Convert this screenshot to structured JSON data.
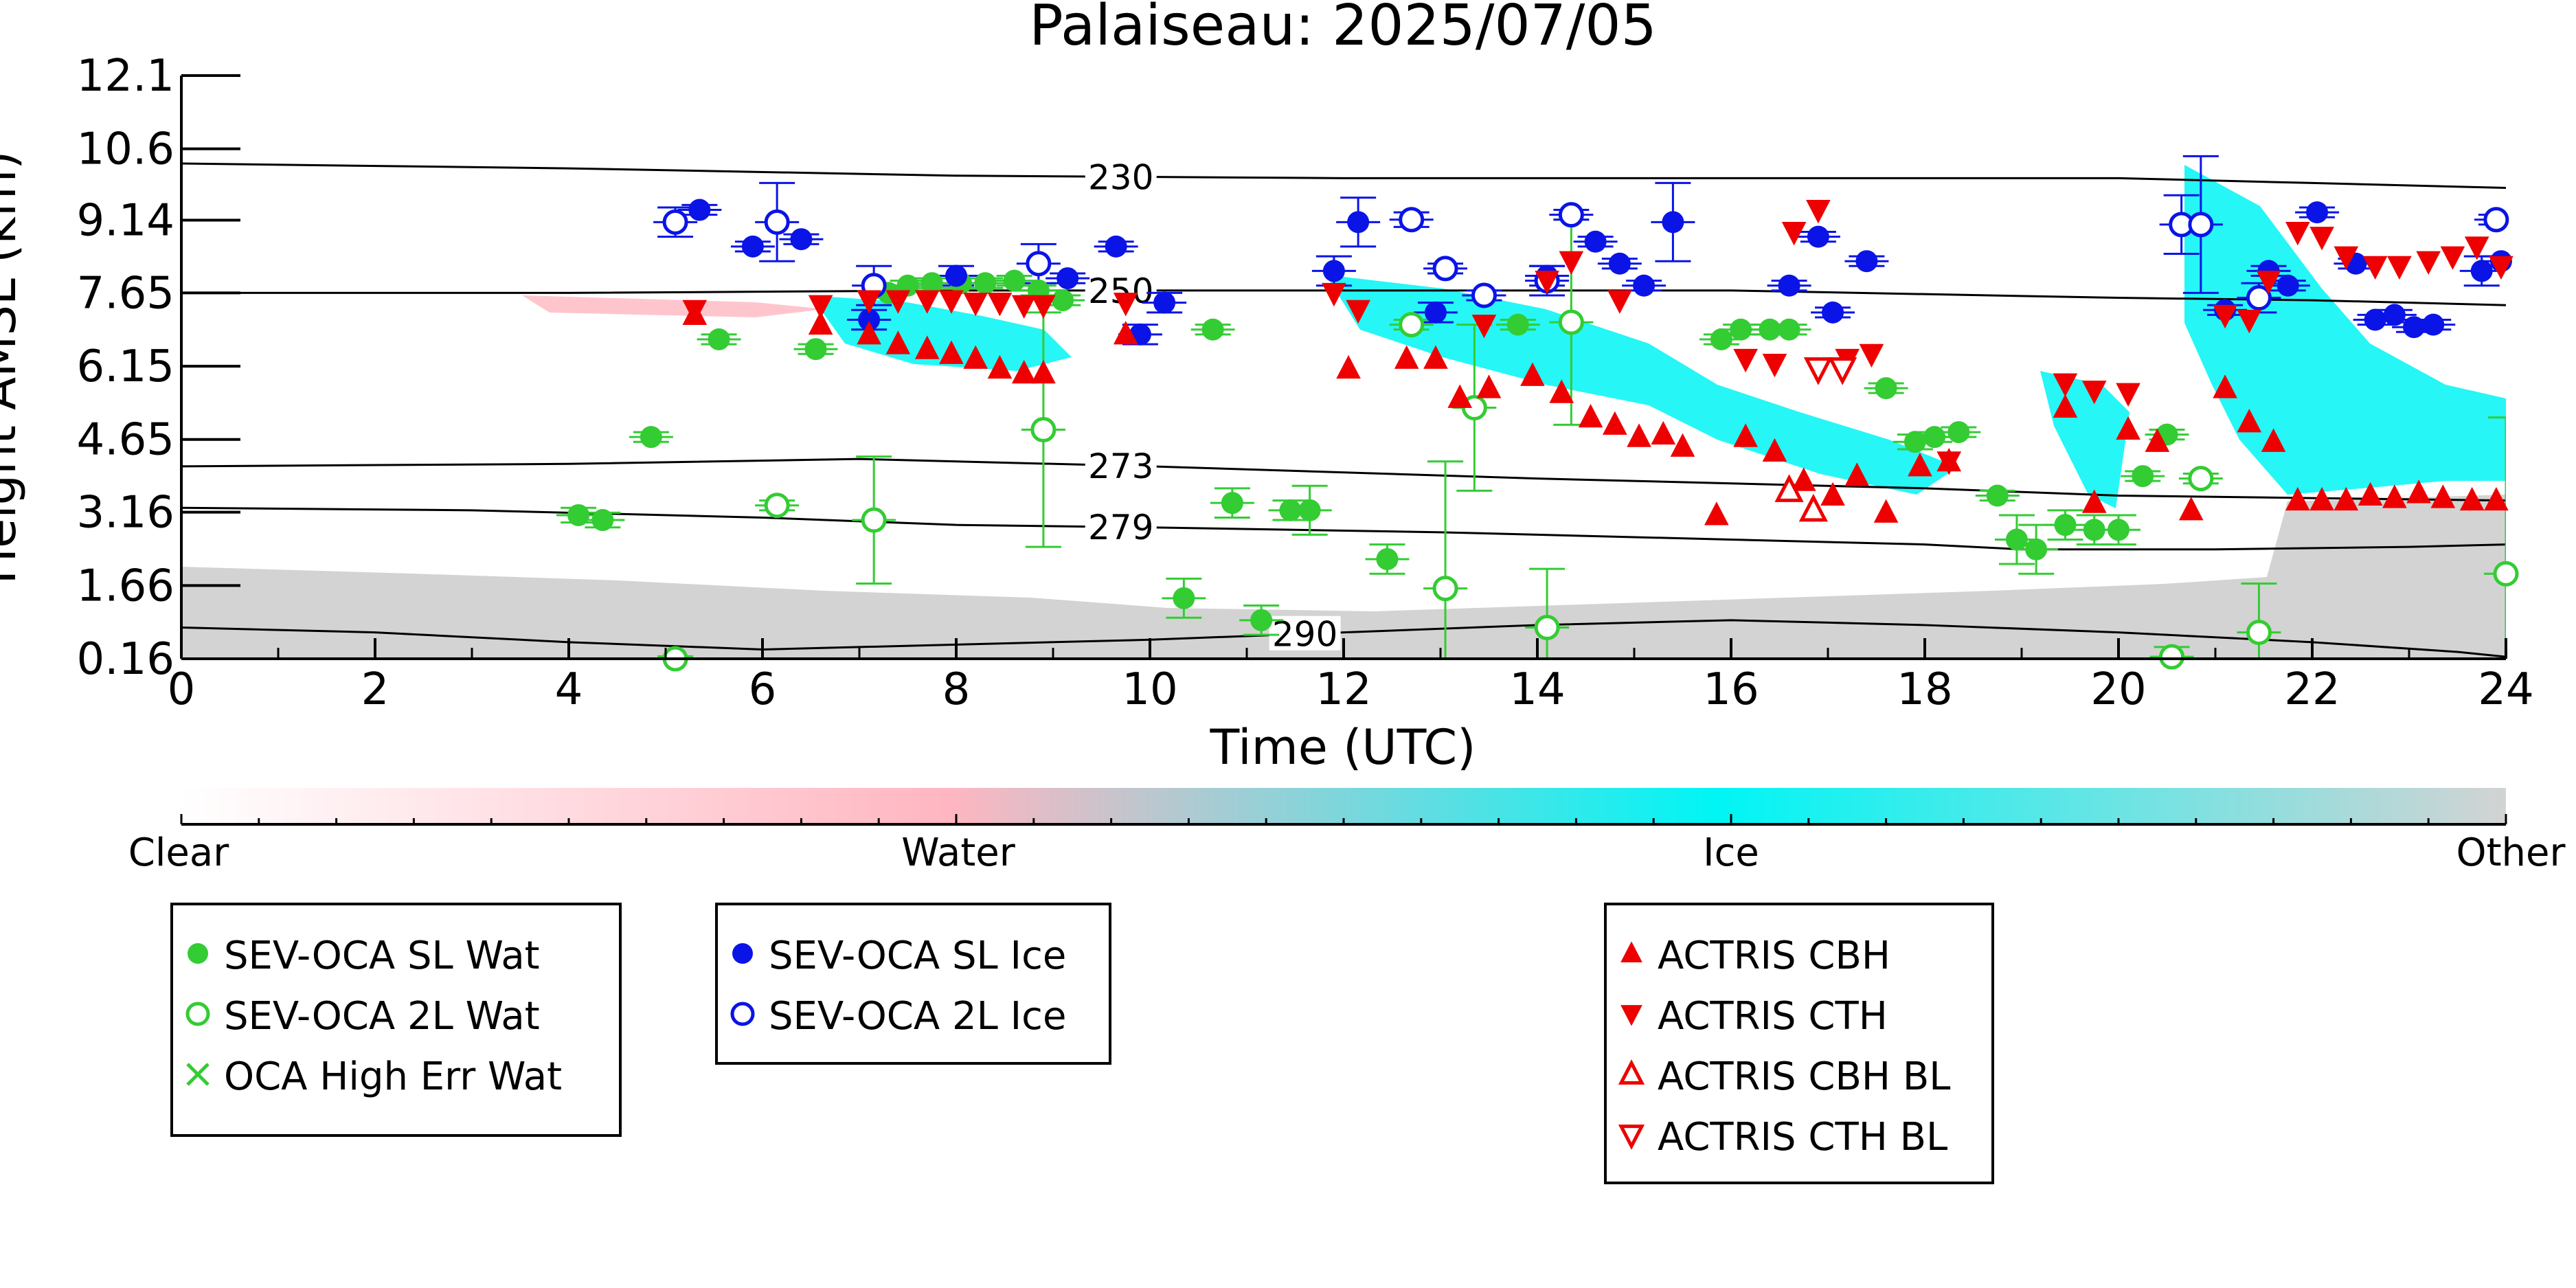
{
  "chart_data": {
    "type": "scatter",
    "title": "Palaiseau: 2025/07/05",
    "xlabel": "Time (UTC)",
    "ylabel": "Height AMSL (km)",
    "xlim": [
      0,
      24
    ],
    "ylim": [
      0.16,
      12.1
    ],
    "x_ticks": [
      0,
      2,
      4,
      6,
      8,
      10,
      12,
      14,
      16,
      18,
      20,
      22,
      24
    ],
    "y_ticks": [
      0.16,
      1.66,
      3.16,
      4.65,
      6.15,
      7.65,
      9.14,
      10.6,
      12.1
    ],
    "y_tick_labels": [
      "0.16",
      "1.66",
      "3.16",
      "4.65",
      "6.15",
      "7.65",
      "9.14",
      "10.6",
      "12.1"
    ],
    "grid": false,
    "colors": {
      "sl_wat": "#33cc33",
      "l2_wat": "#33cc33",
      "sl_ice": "#0a14e6",
      "l2_ice": "#0a14e6",
      "actris": "#ee0000",
      "cloud_ice": "#00f5f5",
      "cloud_water": "#ffb6c1",
      "other": "#d3d3d3"
    },
    "colorbar": {
      "labels": [
        "Clear",
        "Water",
        "Ice",
        "Other"
      ]
    },
    "legend_groups": [
      [
        {
          "label": "SEV-OCA SL Wat",
          "marker": "circle-filled",
          "color_key": "sl_wat"
        },
        {
          "label": "SEV-OCA 2L Wat",
          "marker": "circle-open",
          "color_key": "l2_wat"
        },
        {
          "label": "OCA High Err Wat",
          "marker": "x",
          "color_key": "sl_wat"
        }
      ],
      [
        {
          "label": "SEV-OCA SL Ice",
          "marker": "circle-filled",
          "color_key": "sl_ice"
        },
        {
          "label": "SEV-OCA 2L Ice",
          "marker": "circle-open",
          "color_key": "l2_ice"
        }
      ],
      [
        {
          "label": "ACTRIS CBH",
          "marker": "tri-up-filled",
          "color_key": "actris"
        },
        {
          "label": "ACTRIS CTH",
          "marker": "tri-down-filled",
          "color_key": "actris"
        },
        {
          "label": "ACTRIS CBH BL",
          "marker": "tri-up-open",
          "color_key": "actris"
        },
        {
          "label": "ACTRIS CTH BL",
          "marker": "tri-down-open",
          "color_key": "actris"
        }
      ]
    ],
    "temperature_contours": [
      {
        "label": "230",
        "label_x": 9.7,
        "x": [
          0,
          4,
          8,
          12,
          16,
          20,
          22,
          24
        ],
        "y": [
          10.3,
          10.2,
          10.05,
          10.0,
          10.0,
          10.0,
          9.9,
          9.8
        ]
      },
      {
        "label": "250",
        "label_x": 9.7,
        "x": [
          0,
          4,
          8,
          12,
          16,
          20,
          22,
          24
        ],
        "y": [
          7.65,
          7.65,
          7.7,
          7.7,
          7.7,
          7.55,
          7.5,
          7.4
        ]
      },
      {
        "label": "273",
        "label_x": 9.7,
        "x": [
          0,
          4,
          7,
          10,
          14,
          18,
          20,
          22,
          24
        ],
        "y": [
          4.1,
          4.15,
          4.25,
          4.1,
          3.85,
          3.65,
          3.5,
          3.45,
          3.4
        ]
      },
      {
        "label": "279",
        "label_x": 9.7,
        "x": [
          0,
          3,
          6,
          8,
          10,
          13,
          16,
          18,
          19,
          21,
          23,
          24
        ],
        "y": [
          3.25,
          3.2,
          3.05,
          2.9,
          2.85,
          2.75,
          2.6,
          2.5,
          2.4,
          2.4,
          2.45,
          2.5
        ]
      },
      {
        "label": "290",
        "label_x": 11.6,
        "x": [
          0,
          2,
          4,
          6,
          8,
          10,
          12,
          14,
          16,
          18,
          20,
          22,
          23.5,
          24
        ],
        "y": [
          0.8,
          0.7,
          0.5,
          0.35,
          0.45,
          0.55,
          0.7,
          0.85,
          0.95,
          0.85,
          0.7,
          0.5,
          0.3,
          0.2
        ]
      }
    ],
    "series": [
      {
        "name": "SEV-OCA SL Wat",
        "marker": "circle-filled",
        "color_key": "sl_wat",
        "x": [
          4.1,
          4.35,
          4.85,
          5.55,
          6.55,
          7.3,
          7.5,
          7.75,
          8.05,
          8.3,
          8.6,
          8.85,
          9.1,
          10.35,
          10.65,
          10.85,
          11.15,
          11.45,
          11.65,
          12.45,
          13.8,
          15.9,
          16.1,
          16.4,
          16.6,
          17.6,
          17.9,
          18.1,
          18.35,
          18.75,
          18.95,
          19.15,
          19.45,
          19.75,
          20.0,
          20.25,
          20.5
        ],
        "y": [
          3.1,
          3.0,
          4.7,
          6.7,
          6.5,
          7.65,
          7.8,
          7.85,
          7.85,
          7.85,
          7.9,
          7.7,
          7.5,
          1.4,
          6.9,
          3.35,
          0.95,
          3.2,
          3.2,
          2.2,
          7.0,
          6.7,
          6.9,
          6.9,
          6.9,
          5.7,
          4.6,
          4.7,
          4.8,
          3.5,
          2.6,
          2.4,
          2.9,
          2.8,
          2.8,
          3.9,
          4.75
        ],
        "y_err": [
          0.15,
          0.15,
          0.1,
          0.1,
          0.1,
          0.1,
          0.1,
          0.1,
          0.1,
          0.1,
          0.1,
          0.1,
          0.1,
          0.4,
          0.1,
          0.3,
          0.3,
          0.2,
          0.5,
          0.3,
          0.1,
          0.1,
          0.1,
          0.1,
          0.1,
          0.1,
          0.15,
          0.1,
          0.1,
          0.1,
          0.5,
          0.5,
          0.3,
          0.3,
          0.3,
          0.1,
          0.1
        ]
      },
      {
        "name": "SEV-OCA 2L Wat",
        "marker": "circle-open",
        "color_key": "l2_wat",
        "x": [
          5.1,
          6.15,
          7.15,
          8.9,
          12.7,
          13.05,
          13.35,
          14.1,
          14.35,
          20.55,
          20.85,
          21.45,
          24.0
        ],
        "y": [
          0.16,
          3.3,
          3.0,
          4.85,
          7.0,
          1.6,
          5.3,
          0.8,
          7.05,
          0.2,
          3.85,
          0.7,
          1.9
        ],
        "y_err": [
          0.05,
          0.1,
          1.3,
          2.4,
          0.1,
          2.6,
          1.7,
          1.2,
          2.1,
          0.2,
          0.1,
          1.0,
          3.2
        ]
      },
      {
        "name": "SEV-OCA SL Ice",
        "marker": "circle-filled",
        "color_key": "sl_ice",
        "x": [
          5.35,
          5.9,
          6.4,
          7.1,
          8.0,
          9.15,
          9.65,
          9.9,
          10.15,
          11.9,
          12.15,
          12.95,
          14.1,
          14.6,
          14.85,
          15.1,
          15.4,
          16.6,
          16.9,
          17.05,
          17.4,
          21.1,
          21.55,
          21.75,
          22.05,
          22.45,
          22.65,
          22.85,
          23.05,
          23.25,
          23.75,
          23.95
        ],
        "y": [
          9.35,
          8.6,
          8.75,
          7.1,
          8.0,
          7.95,
          8.6,
          6.8,
          7.45,
          8.1,
          9.1,
          7.25,
          8.0,
          8.7,
          8.25,
          7.8,
          9.1,
          7.8,
          8.8,
          7.25,
          8.3,
          7.3,
          8.1,
          7.8,
          9.3,
          8.25,
          7.1,
          7.2,
          6.95,
          7.0,
          8.1,
          8.3
        ],
        "y_err": [
          0.1,
          0.1,
          0.1,
          0.2,
          0.2,
          0.1,
          0.1,
          0.2,
          0.2,
          0.3,
          0.5,
          0.2,
          0.2,
          0.1,
          0.1,
          0.1,
          0.8,
          0.1,
          0.1,
          0.1,
          0.1,
          0.1,
          0.1,
          0.1,
          0.1,
          0.1,
          0.1,
          0.1,
          0.1,
          0.1,
          0.3,
          0.1
        ]
      },
      {
        "name": "SEV-OCA 2L Ice",
        "marker": "circle-open",
        "color_key": "l2_ice",
        "x": [
          5.1,
          6.15,
          7.15,
          8.85,
          12.7,
          13.05,
          13.45,
          14.1,
          14.35,
          20.65,
          20.85,
          21.45,
          23.9
        ],
        "y": [
          9.1,
          9.1,
          7.8,
          8.25,
          9.15,
          8.15,
          7.6,
          7.9,
          9.25,
          9.05,
          9.05,
          7.55,
          9.15
        ],
        "y_err": [
          0.3,
          0.8,
          0.4,
          0.4,
          0.15,
          0.1,
          0.1,
          0.3,
          0.1,
          0.6,
          1.4,
          0.3,
          0.1
        ]
      },
      {
        "name": "ACTRIS CBH",
        "marker": "tri-up-filled",
        "color_key": "actris",
        "x": [
          5.3,
          6.6,
          7.1,
          7.4,
          7.7,
          7.95,
          8.2,
          8.45,
          8.7,
          8.9,
          9.75,
          12.05,
          12.65,
          12.95,
          13.2,
          13.5,
          13.95,
          14.25,
          14.55,
          14.8,
          15.05,
          15.3,
          15.5,
          15.85,
          16.15,
          16.45,
          16.75,
          17.05,
          17.3,
          17.6,
          17.95,
          18.25,
          19.45,
          19.75,
          20.1,
          20.4,
          20.75,
          21.1,
          21.35,
          21.6,
          21.85,
          22.1,
          22.35,
          22.6,
          22.85,
          23.1,
          23.35,
          23.65,
          23.9
        ],
        "y": [
          7.2,
          7.0,
          6.8,
          6.6,
          6.5,
          6.4,
          6.3,
          6.1,
          6.0,
          6.0,
          6.8,
          6.1,
          6.3,
          6.3,
          5.5,
          5.7,
          5.95,
          5.6,
          5.1,
          4.95,
          4.7,
          4.75,
          4.5,
          3.1,
          4.7,
          4.4,
          3.8,
          3.5,
          3.9,
          3.15,
          4.1,
          4.2,
          5.3,
          3.35,
          4.85,
          4.6,
          3.2,
          5.7,
          5.0,
          4.6,
          3.4,
          3.4,
          3.4,
          3.5,
          3.45,
          3.55,
          3.45,
          3.4,
          3.4
        ]
      },
      {
        "name": "ACTRIS CTH",
        "marker": "tri-down-filled",
        "color_key": "actris",
        "x": [
          5.3,
          6.6,
          7.1,
          7.4,
          7.7,
          7.95,
          8.2,
          8.45,
          8.7,
          8.9,
          9.75,
          11.9,
          12.15,
          13.45,
          14.1,
          14.35,
          14.85,
          16.15,
          16.45,
          16.65,
          16.9,
          17.2,
          17.45,
          18.25,
          19.45,
          19.75,
          20.1,
          21.1,
          21.35,
          21.55,
          21.85,
          22.1,
          22.35,
          22.65,
          22.9,
          23.2,
          23.45,
          23.7,
          23.95
        ],
        "y": [
          7.3,
          7.4,
          7.5,
          7.5,
          7.5,
          7.5,
          7.45,
          7.45,
          7.4,
          7.4,
          7.45,
          7.65,
          7.3,
          7.0,
          7.9,
          8.3,
          7.5,
          6.3,
          6.2,
          8.9,
          9.35,
          6.3,
          6.4,
          4.2,
          5.8,
          5.65,
          5.6,
          7.2,
          7.1,
          7.9,
          8.9,
          8.8,
          8.4,
          8.2,
          8.2,
          8.3,
          8.4,
          8.6,
          8.2
        ]
      },
      {
        "name": "ACTRIS CBH BL",
        "marker": "tri-up-open",
        "color_key": "actris",
        "x": [
          16.6,
          16.85
        ],
        "y": [
          3.6,
          3.2
        ]
      },
      {
        "name": "ACTRIS CTH BL",
        "marker": "tri-down-open",
        "color_key": "actris",
        "x": [
          16.9,
          17.15
        ],
        "y": [
          6.1,
          6.1
        ]
      }
    ]
  }
}
